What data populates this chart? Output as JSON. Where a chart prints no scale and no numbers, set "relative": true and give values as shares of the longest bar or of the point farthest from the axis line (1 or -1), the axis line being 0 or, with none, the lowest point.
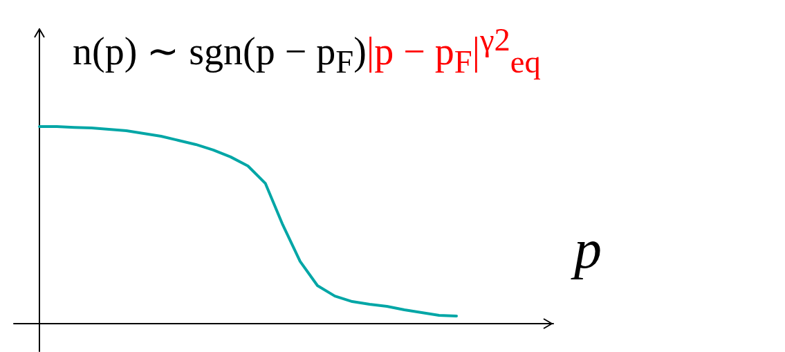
{
  "chart_data": {
    "type": "line",
    "title": "n(p) ∼ sgn(p − p$_{F}$)",
    "annotations": [
      "|p − p$_{F}$|$^{γ}$$^{2}$$_{eq}$"
    ],
    "xlabel": "p",
    "relative": true,
    "color": "#00a6a6",
    "categories": [
      null,
      null,
      null,
      null,
      null,
      null,
      null,
      null,
      null,
      null,
      null,
      null,
      null,
      null,
      null,
      null,
      null,
      null,
      null,
      null,
      null,
      null,
      null,
      null,
      null
    ],
    "values": [
      1.0,
      1.0,
      0.996,
      0.993,
      0.986,
      0.979,
      0.965,
      0.951,
      0.93,
      0.909,
      0.881,
      0.846,
      0.8,
      0.712,
      0.502,
      0.316,
      0.193,
      0.14,
      0.112,
      0.098,
      0.088,
      0.07,
      0.056,
      0.042,
      0.039
    ]
  }
}
